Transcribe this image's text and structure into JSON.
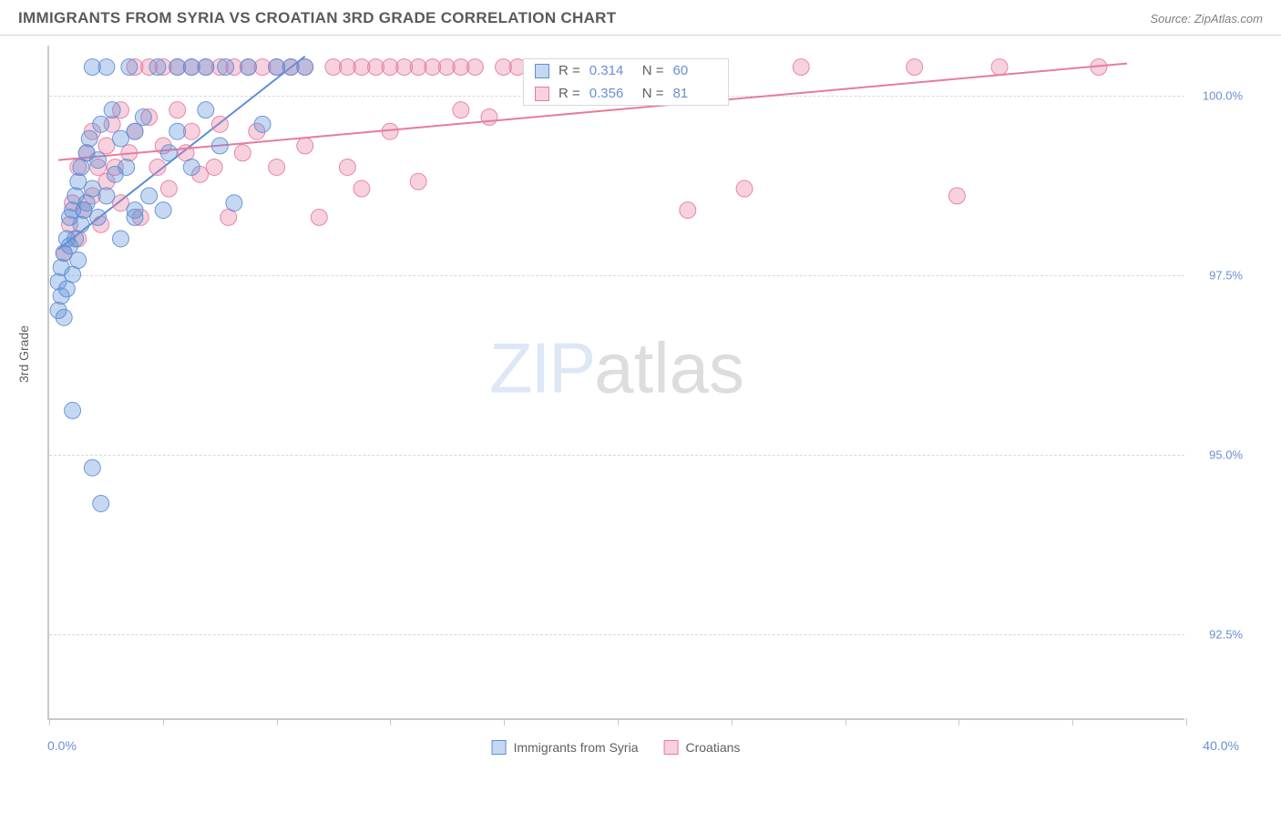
{
  "header": {
    "title": "IMMIGRANTS FROM SYRIA VS CROATIAN 3RD GRADE CORRELATION CHART",
    "source_prefix": "Source: ",
    "source_name": "ZipAtlas.com"
  },
  "watermark": {
    "part1": "ZIP",
    "part2": "atlas"
  },
  "chart": {
    "type": "scatter",
    "y_axis_title": "3rd Grade",
    "xlim": [
      0,
      40
    ],
    "ylim": [
      91.3,
      100.7
    ],
    "x_ticks": [
      0,
      4,
      8,
      12,
      16,
      20,
      24,
      28,
      32,
      36,
      40
    ],
    "x_tick_labels_shown": {
      "0": "0.0%",
      "40": "40.0%"
    },
    "y_gridlines": [
      92.5,
      95.0,
      97.5,
      100.0
    ],
    "y_tick_labels": {
      "92.5": "92.5%",
      "95.0": "95.0%",
      "97.5": "97.5%",
      "100.0": "100.0%"
    },
    "background_color": "#ffffff",
    "grid_color": "#d8d8d8",
    "axis_color": "#c8c8c8",
    "label_color": "#6a8fd4",
    "marker_radius": 9,
    "marker_fill_opacity": 0.35,
    "marker_stroke_opacity": 0.9,
    "line_width": 2,
    "series": [
      {
        "id": "syria",
        "label": "Immigrants from Syria",
        "color": "#5b8fd6",
        "R": "0.314",
        "N": "60",
        "trend": {
          "x1": 0.3,
          "y1": 97.85,
          "x2": 9.0,
          "y2": 100.55
        },
        "points": [
          [
            0.3,
            97.0
          ],
          [
            0.3,
            97.4
          ],
          [
            0.4,
            97.2
          ],
          [
            0.4,
            97.6
          ],
          [
            0.5,
            96.9
          ],
          [
            0.5,
            97.8
          ],
          [
            0.6,
            98.0
          ],
          [
            0.6,
            97.3
          ],
          [
            0.7,
            98.3
          ],
          [
            0.7,
            97.9
          ],
          [
            0.8,
            97.5
          ],
          [
            0.8,
            98.4
          ],
          [
            0.9,
            98.6
          ],
          [
            0.9,
            98.0
          ],
          [
            1.0,
            98.8
          ],
          [
            1.0,
            97.7
          ],
          [
            1.1,
            99.0
          ],
          [
            1.1,
            98.2
          ],
          [
            1.2,
            98.4
          ],
          [
            1.3,
            99.2
          ],
          [
            1.3,
            98.5
          ],
          [
            1.4,
            99.4
          ],
          [
            1.5,
            100.4
          ],
          [
            1.5,
            98.7
          ],
          [
            1.7,
            99.1
          ],
          [
            1.7,
            98.3
          ],
          [
            1.8,
            99.6
          ],
          [
            2.0,
            100.4
          ],
          [
            2.0,
            98.6
          ],
          [
            2.2,
            99.8
          ],
          [
            2.3,
            98.9
          ],
          [
            2.5,
            98.0
          ],
          [
            2.5,
            99.4
          ],
          [
            2.7,
            99.0
          ],
          [
            2.8,
            100.4
          ],
          [
            3.0,
            99.5
          ],
          [
            3.0,
            98.3
          ],
          [
            3.3,
            99.7
          ],
          [
            3.5,
            98.6
          ],
          [
            3.8,
            100.4
          ],
          [
            4.0,
            98.4
          ],
          [
            4.2,
            99.2
          ],
          [
            4.5,
            99.5
          ],
          [
            4.5,
            100.4
          ],
          [
            5.0,
            99.0
          ],
          [
            5.0,
            100.4
          ],
          [
            5.5,
            99.8
          ],
          [
            5.5,
            100.4
          ],
          [
            6.0,
            99.3
          ],
          [
            6.2,
            100.4
          ],
          [
            6.5,
            98.5
          ],
          [
            7.0,
            100.4
          ],
          [
            7.5,
            99.6
          ],
          [
            8.0,
            100.4
          ],
          [
            8.5,
            100.4
          ],
          [
            9.0,
            100.4
          ],
          [
            0.8,
            95.6
          ],
          [
            1.5,
            94.8
          ],
          [
            1.8,
            94.3
          ],
          [
            3.0,
            98.4
          ]
        ]
      },
      {
        "id": "croatia",
        "label": "Croatians",
        "color": "#e77ba0",
        "R": "0.356",
        "N": "81",
        "trend": {
          "x1": 0.3,
          "y1": 99.1,
          "x2": 38.0,
          "y2": 100.45
        },
        "points": [
          [
            0.5,
            97.8
          ],
          [
            0.7,
            98.2
          ],
          [
            0.8,
            98.5
          ],
          [
            1.0,
            98.0
          ],
          [
            1.0,
            99.0
          ],
          [
            1.2,
            98.4
          ],
          [
            1.3,
            99.2
          ],
          [
            1.5,
            98.6
          ],
          [
            1.5,
            99.5
          ],
          [
            1.7,
            99.0
          ],
          [
            1.8,
            98.2
          ],
          [
            2.0,
            99.3
          ],
          [
            2.0,
            98.8
          ],
          [
            2.2,
            99.6
          ],
          [
            2.3,
            99.0
          ],
          [
            2.5,
            99.8
          ],
          [
            2.5,
            98.5
          ],
          [
            2.8,
            99.2
          ],
          [
            3.0,
            100.4
          ],
          [
            3.0,
            99.5
          ],
          [
            3.2,
            98.3
          ],
          [
            3.5,
            99.7
          ],
          [
            3.5,
            100.4
          ],
          [
            3.8,
            99.0
          ],
          [
            4.0,
            100.4
          ],
          [
            4.0,
            99.3
          ],
          [
            4.2,
            98.7
          ],
          [
            4.5,
            99.8
          ],
          [
            4.5,
            100.4
          ],
          [
            4.8,
            99.2
          ],
          [
            5.0,
            100.4
          ],
          [
            5.0,
            99.5
          ],
          [
            5.3,
            98.9
          ],
          [
            5.5,
            100.4
          ],
          [
            5.8,
            99.0
          ],
          [
            6.0,
            100.4
          ],
          [
            6.0,
            99.6
          ],
          [
            6.3,
            98.3
          ],
          [
            6.5,
            100.4
          ],
          [
            6.8,
            99.2
          ],
          [
            7.0,
            100.4
          ],
          [
            7.3,
            99.5
          ],
          [
            7.5,
            100.4
          ],
          [
            8.0,
            99.0
          ],
          [
            8.0,
            100.4
          ],
          [
            8.5,
            100.4
          ],
          [
            9.0,
            99.3
          ],
          [
            9.0,
            100.4
          ],
          [
            9.5,
            98.3
          ],
          [
            10.0,
            100.4
          ],
          [
            10.5,
            100.4
          ],
          [
            10.5,
            99.0
          ],
          [
            11.0,
            100.4
          ],
          [
            11.0,
            98.7
          ],
          [
            11.5,
            100.4
          ],
          [
            12.0,
            99.5
          ],
          [
            12.0,
            100.4
          ],
          [
            12.5,
            100.4
          ],
          [
            13.0,
            98.8
          ],
          [
            13.0,
            100.4
          ],
          [
            13.5,
            100.4
          ],
          [
            14.0,
            100.4
          ],
          [
            14.5,
            100.4
          ],
          [
            15.0,
            100.4
          ],
          [
            15.5,
            99.7
          ],
          [
            16.0,
            100.4
          ],
          [
            16.5,
            100.4
          ],
          [
            17.0,
            100.4
          ],
          [
            18.0,
            100.4
          ],
          [
            19.0,
            100.0
          ],
          [
            20.0,
            100.4
          ],
          [
            21.0,
            100.4
          ],
          [
            22.5,
            98.4
          ],
          [
            23.0,
            100.4
          ],
          [
            24.5,
            98.7
          ],
          [
            26.5,
            100.4
          ],
          [
            30.5,
            100.4
          ],
          [
            32.0,
            98.6
          ],
          [
            33.5,
            100.4
          ],
          [
            37.0,
            100.4
          ],
          [
            14.5,
            99.8
          ]
        ]
      }
    ],
    "legend_bottom": [
      {
        "label_key": "series.0.label",
        "color_key": "series.0.color"
      },
      {
        "label_key": "series.1.label",
        "color_key": "series.1.color"
      }
    ]
  }
}
